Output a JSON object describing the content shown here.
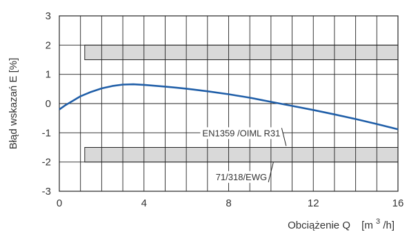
{
  "chart_data": {
    "type": "line",
    "xlabel": "Obciążenie Q",
    "xunit_prefix": "[m",
    "xunit_sup": "3",
    "xunit_suffix": "/h]",
    "ylabel": "Błąd wskazań E [%]",
    "xlim": [
      0,
      16
    ],
    "ylim": [
      -3,
      3
    ],
    "x_ticks": [
      0,
      4,
      8,
      12,
      16
    ],
    "y_ticks": [
      3,
      2,
      1,
      0,
      -1,
      -2,
      -3
    ],
    "x_ticks_labels": [
      "0",
      "4",
      "8",
      "12",
      "16"
    ],
    "y_ticks_labels": [
      "3",
      "2",
      "1",
      "0",
      "-1",
      "-2",
      "-3"
    ],
    "grid": true,
    "series": [
      {
        "x": [
          0,
          0.3,
          0.7,
          1.0,
          1.5,
          2.0,
          2.5,
          3.0,
          3.5,
          4.0,
          5.0,
          6.0,
          7.0,
          8.0,
          9.0,
          10.0,
          11.0,
          12.0,
          13.0,
          14.0,
          15.0,
          16.0
        ],
        "y": [
          -0.2,
          -0.05,
          0.12,
          0.25,
          0.4,
          0.52,
          0.6,
          0.65,
          0.66,
          0.64,
          0.58,
          0.51,
          0.42,
          0.32,
          0.2,
          0.06,
          -0.08,
          -0.22,
          -0.37,
          -0.53,
          -0.7,
          -0.88
        ],
        "color": "#1f5ea8"
      }
    ],
    "bands": [
      {
        "x_start": 1.2,
        "x_end": 16,
        "y_low": 1.5,
        "y_high": 2.0,
        "color": "#d9d9d9"
      },
      {
        "x_start": 1.2,
        "x_end": 16,
        "y_low": -2.0,
        "y_high": -1.5,
        "color": "#d9d9d9"
      }
    ],
    "annotations": [
      {
        "text": "EN1359 /OIML R31",
        "at_x": 8.6,
        "at_y": -1.0,
        "pointer_to": [
          8.6,
          -1.45
        ]
      },
      {
        "text": "71/318/EWG",
        "at_x": 8.6,
        "at_y": -2.5,
        "pointer_to": [
          8.6,
          -2.0
        ]
      }
    ]
  }
}
